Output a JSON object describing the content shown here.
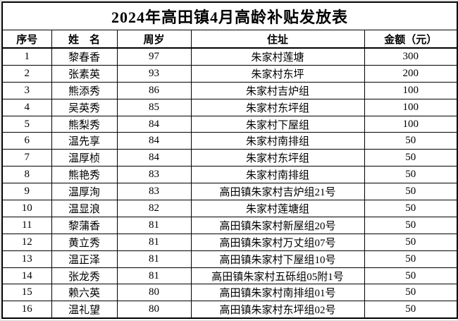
{
  "title": "2024年高田镇4月高龄补贴发放表",
  "columns": [
    "序号",
    "姓　名",
    "周岁",
    "住址",
    "金额（元）"
  ],
  "rows": [
    [
      "1",
      "黎春香",
      "97",
      "朱家村莲塘",
      "300"
    ],
    [
      "2",
      "张素英",
      "93",
      "朱家村东坪",
      "200"
    ],
    [
      "3",
      "熊添秀",
      "86",
      "朱家村吉炉组",
      "100"
    ],
    [
      "4",
      "吴英秀",
      "85",
      "朱家村东坪组",
      "100"
    ],
    [
      "5",
      "熊梨秀",
      "84",
      "朱家村下屋组",
      "100"
    ],
    [
      "6",
      "温先享",
      "84",
      "朱家村南排组",
      "50"
    ],
    [
      "7",
      "温厚桢",
      "84",
      "朱家村东坪组",
      "50"
    ],
    [
      "8",
      "熊艳秀",
      "83",
      "朱家村南排组",
      "50"
    ],
    [
      "9",
      "温厚洵",
      "83",
      "高田镇朱家村吉炉组21号",
      "50"
    ],
    [
      "10",
      "温显浪",
      "82",
      "朱家村莲塘组",
      "50"
    ],
    [
      "11",
      "黎蒲香",
      "81",
      "高田镇朱家村新屋组20号",
      "50"
    ],
    [
      "12",
      "黄立秀",
      "81",
      "高田镇朱家村万丈组07号",
      "50"
    ],
    [
      "13",
      "温正泽",
      "81",
      "高田镇朱家村下屋组10号",
      "50"
    ],
    [
      "14",
      "张龙秀",
      "81",
      "高田镇朱家村五砾组05附1号",
      "50"
    ],
    [
      "15",
      "赖六英",
      "80",
      "高田镇朱家村南排组01号",
      "50"
    ],
    [
      "16",
      "温礼望",
      "80",
      "高田镇朱家村东坪组02号",
      "50"
    ]
  ],
  "colors": {
    "border": "#000000",
    "background": "#ffffff",
    "text": "#000000"
  }
}
